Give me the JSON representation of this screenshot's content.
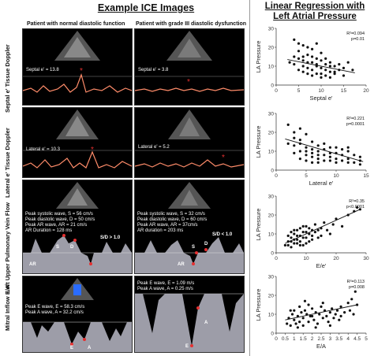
{
  "titles": {
    "ice": "Example ICE Images",
    "regression": "Linear Regression with Left Atrial Pressure"
  },
  "columns": {
    "normal": "Patient with normal diastolic function",
    "grade3": "Patient with grade III diastolic dysfunction"
  },
  "rows": [
    {
      "label": "Septal e' Tissue Doppler"
    },
    {
      "label": "Lateral e' Tissue Doppler"
    },
    {
      "label": "Left Upper Pulmonary Vein Flow"
    },
    {
      "label": "Mitral Inflow E/A"
    }
  ],
  "panels": {
    "septal_normal": "Septal e' = 13.8",
    "septal_grade3": "Septal e' = 3.8",
    "lateral_normal": "Lateral e' = 10.3",
    "lateral_grade3": "Lateral e' = 5.2",
    "pv_normal": [
      "Peak systolic wave, S = 56 cm/s",
      "Peak diastolic wave, D = 50 cm/s",
      "Peak AR wave, AR = 21 cm/s",
      "AR Duration = 128 ms"
    ],
    "pv_normal_ratio": "S/D > 1.0",
    "pv_grade3": [
      "Peak systolic wave, S = 32 cm/s",
      "Peak diastolic wave, D = 60 cm/s",
      "Peak AR wave, AR = 37cm/s",
      "AR duration = 203 ms"
    ],
    "pv_grade3_ratio": "S/D < 1.0",
    "mitral_normal": [
      "Peak E wave, E = 58.3 cm/s",
      "Peak A wave, A = 32.2 cm/s"
    ],
    "mitral_grade3": [
      "Peak E wave, E = 1.09 m/s",
      "Peak A wave, A = 0.25 m/s"
    ],
    "wave_labels": {
      "S": "S",
      "D": "D",
      "AR": "AR",
      "E": "E",
      "A": "A"
    }
  },
  "colors": {
    "marker": "#e53030",
    "trace": "#ffffff",
    "scatter": "#111111"
  },
  "chart_data": [
    {
      "type": "scatter",
      "xlabel": "Septal e'",
      "ylabel": "LA Pressure",
      "xlim": [
        0,
        20
      ],
      "ylim": [
        0,
        30
      ],
      "xticks": [
        0,
        5,
        10,
        15,
        20
      ],
      "yticks": [
        0,
        10,
        20,
        30
      ],
      "annotation": [
        "R²=0.094",
        "p=0.01"
      ],
      "trend": [
        [
          2.5,
          13.5
        ],
        [
          17.5,
          6.5
        ]
      ],
      "points": [
        [
          4,
          24
        ],
        [
          5,
          22
        ],
        [
          6,
          21
        ],
        [
          5,
          18
        ],
        [
          7,
          20
        ],
        [
          8,
          19
        ],
        [
          9,
          22
        ],
        [
          4,
          15
        ],
        [
          5,
          14
        ],
        [
          6,
          13
        ],
        [
          7,
          12
        ],
        [
          8,
          15
        ],
        [
          9,
          11
        ],
        [
          10,
          13
        ],
        [
          11,
          14
        ],
        [
          12,
          12
        ],
        [
          6,
          10
        ],
        [
          7,
          9
        ],
        [
          8,
          8
        ],
        [
          9,
          10
        ],
        [
          10,
          9
        ],
        [
          11,
          8
        ],
        [
          12,
          7
        ],
        [
          13,
          10
        ],
        [
          14,
          8
        ],
        [
          5,
          8
        ],
        [
          6,
          7
        ],
        [
          7,
          6
        ],
        [
          8,
          5
        ],
        [
          9,
          6
        ],
        [
          10,
          4
        ],
        [
          11,
          5
        ],
        [
          12,
          4
        ],
        [
          13,
          6
        ],
        [
          15,
          9
        ],
        [
          16,
          12
        ],
        [
          17,
          8
        ],
        [
          4,
          11
        ],
        [
          3,
          12
        ],
        [
          10,
          17
        ],
        [
          11,
          11
        ],
        [
          14,
          11
        ],
        [
          9,
          14
        ],
        [
          7,
          16
        ],
        [
          6,
          15
        ],
        [
          8,
          12
        ],
        [
          12,
          10
        ],
        [
          13,
          7
        ],
        [
          10,
          6
        ],
        [
          15,
          5
        ]
      ]
    },
    {
      "type": "scatter",
      "xlabel": "Lateral e'",
      "ylabel": "LA Pressure",
      "xlim": [
        0,
        15
      ],
      "ylim": [
        0,
        30
      ],
      "xticks": [
        0,
        5,
        10,
        15
      ],
      "yticks": [
        0,
        10,
        20,
        30
      ],
      "annotation": [
        "R²=0.221",
        "p=0.0001"
      ],
      "trend": [
        [
          1.5,
          16.5
        ],
        [
          14.5,
          4.5
        ]
      ],
      "points": [
        [
          2,
          24
        ],
        [
          3,
          20
        ],
        [
          4,
          22
        ],
        [
          3,
          17
        ],
        [
          4,
          16
        ],
        [
          5,
          19
        ],
        [
          2,
          14
        ],
        [
          3,
          13
        ],
        [
          4,
          14
        ],
        [
          5,
          12
        ],
        [
          6,
          15
        ],
        [
          7,
          13
        ],
        [
          6,
          11
        ],
        [
          7,
          10
        ],
        [
          8,
          11
        ],
        [
          9,
          9
        ],
        [
          8,
          8
        ],
        [
          9,
          7
        ],
        [
          10,
          9
        ],
        [
          11,
          8
        ],
        [
          12,
          10
        ],
        [
          10,
          6
        ],
        [
          11,
          5
        ],
        [
          12,
          6
        ],
        [
          13,
          4
        ],
        [
          14,
          5
        ],
        [
          5,
          8
        ],
        [
          6,
          7
        ],
        [
          7,
          6
        ],
        [
          8,
          5
        ],
        [
          9,
          5
        ],
        [
          10,
          4
        ],
        [
          4,
          10
        ],
        [
          5,
          10
        ],
        [
          6,
          9
        ],
        [
          7,
          8
        ],
        [
          12,
          12
        ],
        [
          13,
          8
        ],
        [
          14,
          7
        ],
        [
          3,
          9
        ],
        [
          5,
          5
        ],
        [
          8,
          14
        ],
        [
          9,
          12
        ],
        [
          11,
          11
        ],
        [
          10,
          12
        ],
        [
          6,
          4
        ],
        [
          7,
          4
        ],
        [
          4,
          6
        ],
        [
          12,
          4
        ],
        [
          14,
          3
        ]
      ]
    },
    {
      "type": "scatter",
      "xlabel": "E/e'",
      "ylabel": "LA Pressure",
      "xlim": [
        0,
        30
      ],
      "ylim": [
        0,
        30
      ],
      "xticks": [
        0,
        10,
        20,
        30
      ],
      "yticks": [
        0,
        10,
        20,
        30
      ],
      "annotation": [
        "R²=0.35",
        "p<0.0001"
      ],
      "trend": [
        [
          3,
          5
        ],
        [
          28,
          23
        ]
      ],
      "points": [
        [
          3,
          4
        ],
        [
          4,
          6
        ],
        [
          5,
          8
        ],
        [
          5,
          3
        ],
        [
          6,
          5
        ],
        [
          6,
          10
        ],
        [
          7,
          7
        ],
        [
          7,
          12
        ],
        [
          8,
          9
        ],
        [
          8,
          6
        ],
        [
          9,
          11
        ],
        [
          9,
          4
        ],
        [
          10,
          8
        ],
        [
          10,
          14
        ],
        [
          11,
          10
        ],
        [
          11,
          6
        ],
        [
          12,
          12
        ],
        [
          12,
          9
        ],
        [
          13,
          15
        ],
        [
          13,
          11
        ],
        [
          14,
          8
        ],
        [
          15,
          13
        ],
        [
          16,
          16
        ],
        [
          17,
          12
        ],
        [
          18,
          10
        ],
        [
          19,
          15
        ],
        [
          20,
          18
        ],
        [
          22,
          14
        ],
        [
          24,
          20
        ],
        [
          26,
          22
        ],
        [
          27,
          24
        ],
        [
          28,
          23
        ],
        [
          4,
          9
        ],
        [
          5,
          11
        ],
        [
          6,
          7
        ],
        [
          7,
          5
        ],
        [
          8,
          13
        ],
        [
          9,
          8
        ],
        [
          10,
          5
        ],
        [
          11,
          13
        ],
        [
          4,
          4
        ],
        [
          5,
          6
        ],
        [
          6,
          12
        ],
        [
          7,
          9
        ],
        [
          8,
          4
        ],
        [
          9,
          14
        ],
        [
          10,
          11
        ],
        [
          12,
          7
        ],
        [
          14,
          12
        ],
        [
          15,
          9
        ]
      ]
    },
    {
      "type": "scatter",
      "xlabel": "E/A",
      "ylabel": "LA Pressure",
      "xlim": [
        0,
        5
      ],
      "ylim": [
        0,
        30
      ],
      "xticks": [
        0,
        0.5,
        1,
        1.5,
        2,
        2.5,
        3,
        3.5,
        4,
        4.5,
        5
      ],
      "yticks": [
        0,
        10,
        20,
        30
      ],
      "annotation": [
        "R²=0.113",
        "p=0.008"
      ],
      "trend": [
        [
          0.5,
          7
        ],
        [
          4.5,
          15
        ]
      ],
      "points": [
        [
          0.6,
          5
        ],
        [
          0.7,
          8
        ],
        [
          0.8,
          4
        ],
        [
          0.9,
          10
        ],
        [
          1.0,
          7
        ],
        [
          1.0,
          12
        ],
        [
          1.1,
          5
        ],
        [
          1.2,
          9
        ],
        [
          1.3,
          6
        ],
        [
          1.3,
          14
        ],
        [
          1.4,
          11
        ],
        [
          1.5,
          8
        ],
        [
          1.5,
          4
        ],
        [
          1.6,
          12
        ],
        [
          1.7,
          10
        ],
        [
          1.8,
          6
        ],
        [
          1.9,
          9
        ],
        [
          2.0,
          13
        ],
        [
          2.1,
          7
        ],
        [
          2.2,
          11
        ],
        [
          2.3,
          5
        ],
        [
          2.4,
          10
        ],
        [
          2.5,
          14
        ],
        [
          2.6,
          8
        ],
        [
          2.7,
          12
        ],
        [
          2.8,
          9
        ],
        [
          2.9,
          6
        ],
        [
          3.0,
          11
        ],
        [
          3.1,
          13
        ],
        [
          3.2,
          8
        ],
        [
          3.3,
          10
        ],
        [
          3.4,
          12
        ],
        [
          3.5,
          7
        ],
        [
          3.6,
          14
        ],
        [
          3.8,
          11
        ],
        [
          4.0,
          16
        ],
        [
          4.1,
          12
        ],
        [
          4.2,
          18
        ],
        [
          4.3,
          10
        ],
        [
          4.4,
          22
        ],
        [
          4.5,
          15
        ],
        [
          1.2,
          3
        ],
        [
          1.8,
          15
        ],
        [
          2.2,
          3
        ],
        [
          2.6,
          16
        ],
        [
          3.0,
          4
        ],
        [
          1.6,
          17
        ],
        [
          0.8,
          12
        ],
        [
          2.0,
          9
        ],
        [
          3.6,
          9
        ]
      ]
    }
  ]
}
